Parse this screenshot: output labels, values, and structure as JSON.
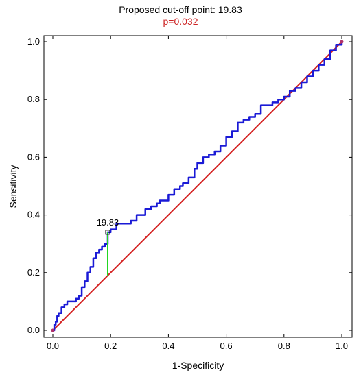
{
  "chart_data": {
    "type": "line",
    "title": "Proposed cut-off point: 19.83",
    "subtitle": "p=0.032",
    "xlabel": "1-Specificity",
    "ylabel": "Sensitivity",
    "xlim": [
      0,
      1
    ],
    "ylim": [
      0,
      1
    ],
    "x_ticks": [
      "0.0",
      "0.2",
      "0.4",
      "0.6",
      "0.8",
      "1.0"
    ],
    "y_ticks": [
      "0.0",
      "0.2",
      "0.4",
      "0.6",
      "0.8",
      "1.0"
    ],
    "grid": false,
    "series": [
      {
        "role": "roc-curve",
        "color": "#1a1ad6",
        "x": [
          0,
          0.005,
          0.01,
          0.015,
          0.02,
          0.03,
          0.04,
          0.05,
          0.07,
          0.08,
          0.09,
          0.1,
          0.11,
          0.12,
          0.13,
          0.14,
          0.15,
          0.16,
          0.17,
          0.18,
          0.19,
          0.19,
          0.2,
          0.22,
          0.25,
          0.27,
          0.29,
          0.3,
          0.32,
          0.34,
          0.36,
          0.37,
          0.38,
          0.4,
          0.42,
          0.44,
          0.45,
          0.47,
          0.49,
          0.5,
          0.52,
          0.54,
          0.56,
          0.58,
          0.6,
          0.62,
          0.64,
          0.66,
          0.68,
          0.7,
          0.72,
          0.74,
          0.76,
          0.78,
          0.8,
          0.82,
          0.84,
          0.86,
          0.88,
          0.9,
          0.92,
          0.94,
          0.96,
          0.98,
          1
        ],
        "y": [
          0,
          0.02,
          0.03,
          0.05,
          0.06,
          0.08,
          0.09,
          0.1,
          0.1,
          0.11,
          0.12,
          0.15,
          0.17,
          0.2,
          0.22,
          0.25,
          0.27,
          0.28,
          0.29,
          0.3,
          0.3,
          0.34,
          0.35,
          0.37,
          0.37,
          0.38,
          0.4,
          0.4,
          0.42,
          0.43,
          0.44,
          0.45,
          0.45,
          0.47,
          0.49,
          0.5,
          0.51,
          0.53,
          0.56,
          0.58,
          0.6,
          0.61,
          0.62,
          0.64,
          0.67,
          0.69,
          0.72,
          0.73,
          0.74,
          0.75,
          0.78,
          0.78,
          0.79,
          0.8,
          0.81,
          0.83,
          0.84,
          0.86,
          0.88,
          0.9,
          0.92,
          0.94,
          0.97,
          0.99,
          1
        ]
      },
      {
        "role": "reference-line",
        "color": "#d42020",
        "x": [
          0,
          1
        ],
        "y": [
          0,
          1
        ]
      }
    ],
    "cutoff": {
      "label": "19.83",
      "x": 0.19,
      "y": 0.34,
      "baseline_y": 0.19,
      "color": "#22d622"
    }
  }
}
